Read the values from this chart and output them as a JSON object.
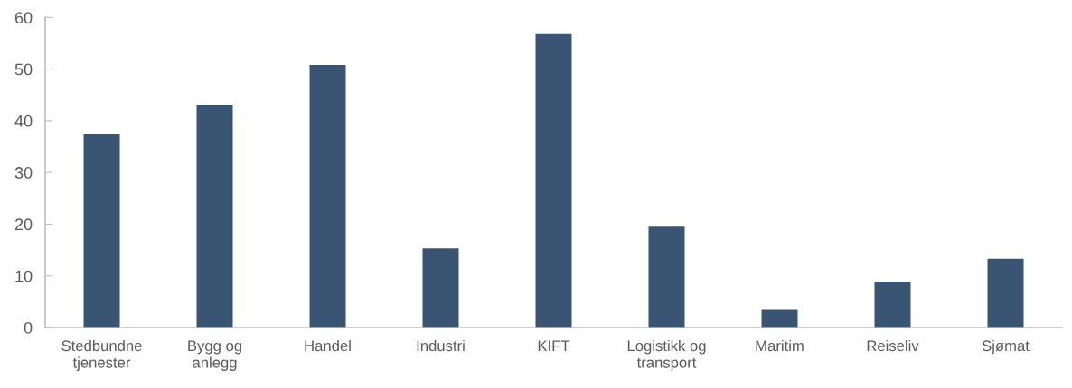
{
  "chart_data": {
    "type": "bar",
    "categories": [
      "Stedbundne\ntjenester",
      "Bygg og\nanlegg",
      "Handel",
      "Industri",
      "KIFT",
      "Logistikk og\ntransport",
      "Maritim",
      "Reiseliv",
      "Sjømat"
    ],
    "values": [
      37.4,
      43.1,
      50.8,
      15.3,
      56.8,
      19.5,
      3.4,
      8.9,
      13.3
    ],
    "color": "#3a5574",
    "ylim": [
      0,
      60
    ],
    "yticks": [
      0,
      10,
      20,
      30,
      40,
      50,
      60
    ],
    "grid": false,
    "legend": false
  }
}
